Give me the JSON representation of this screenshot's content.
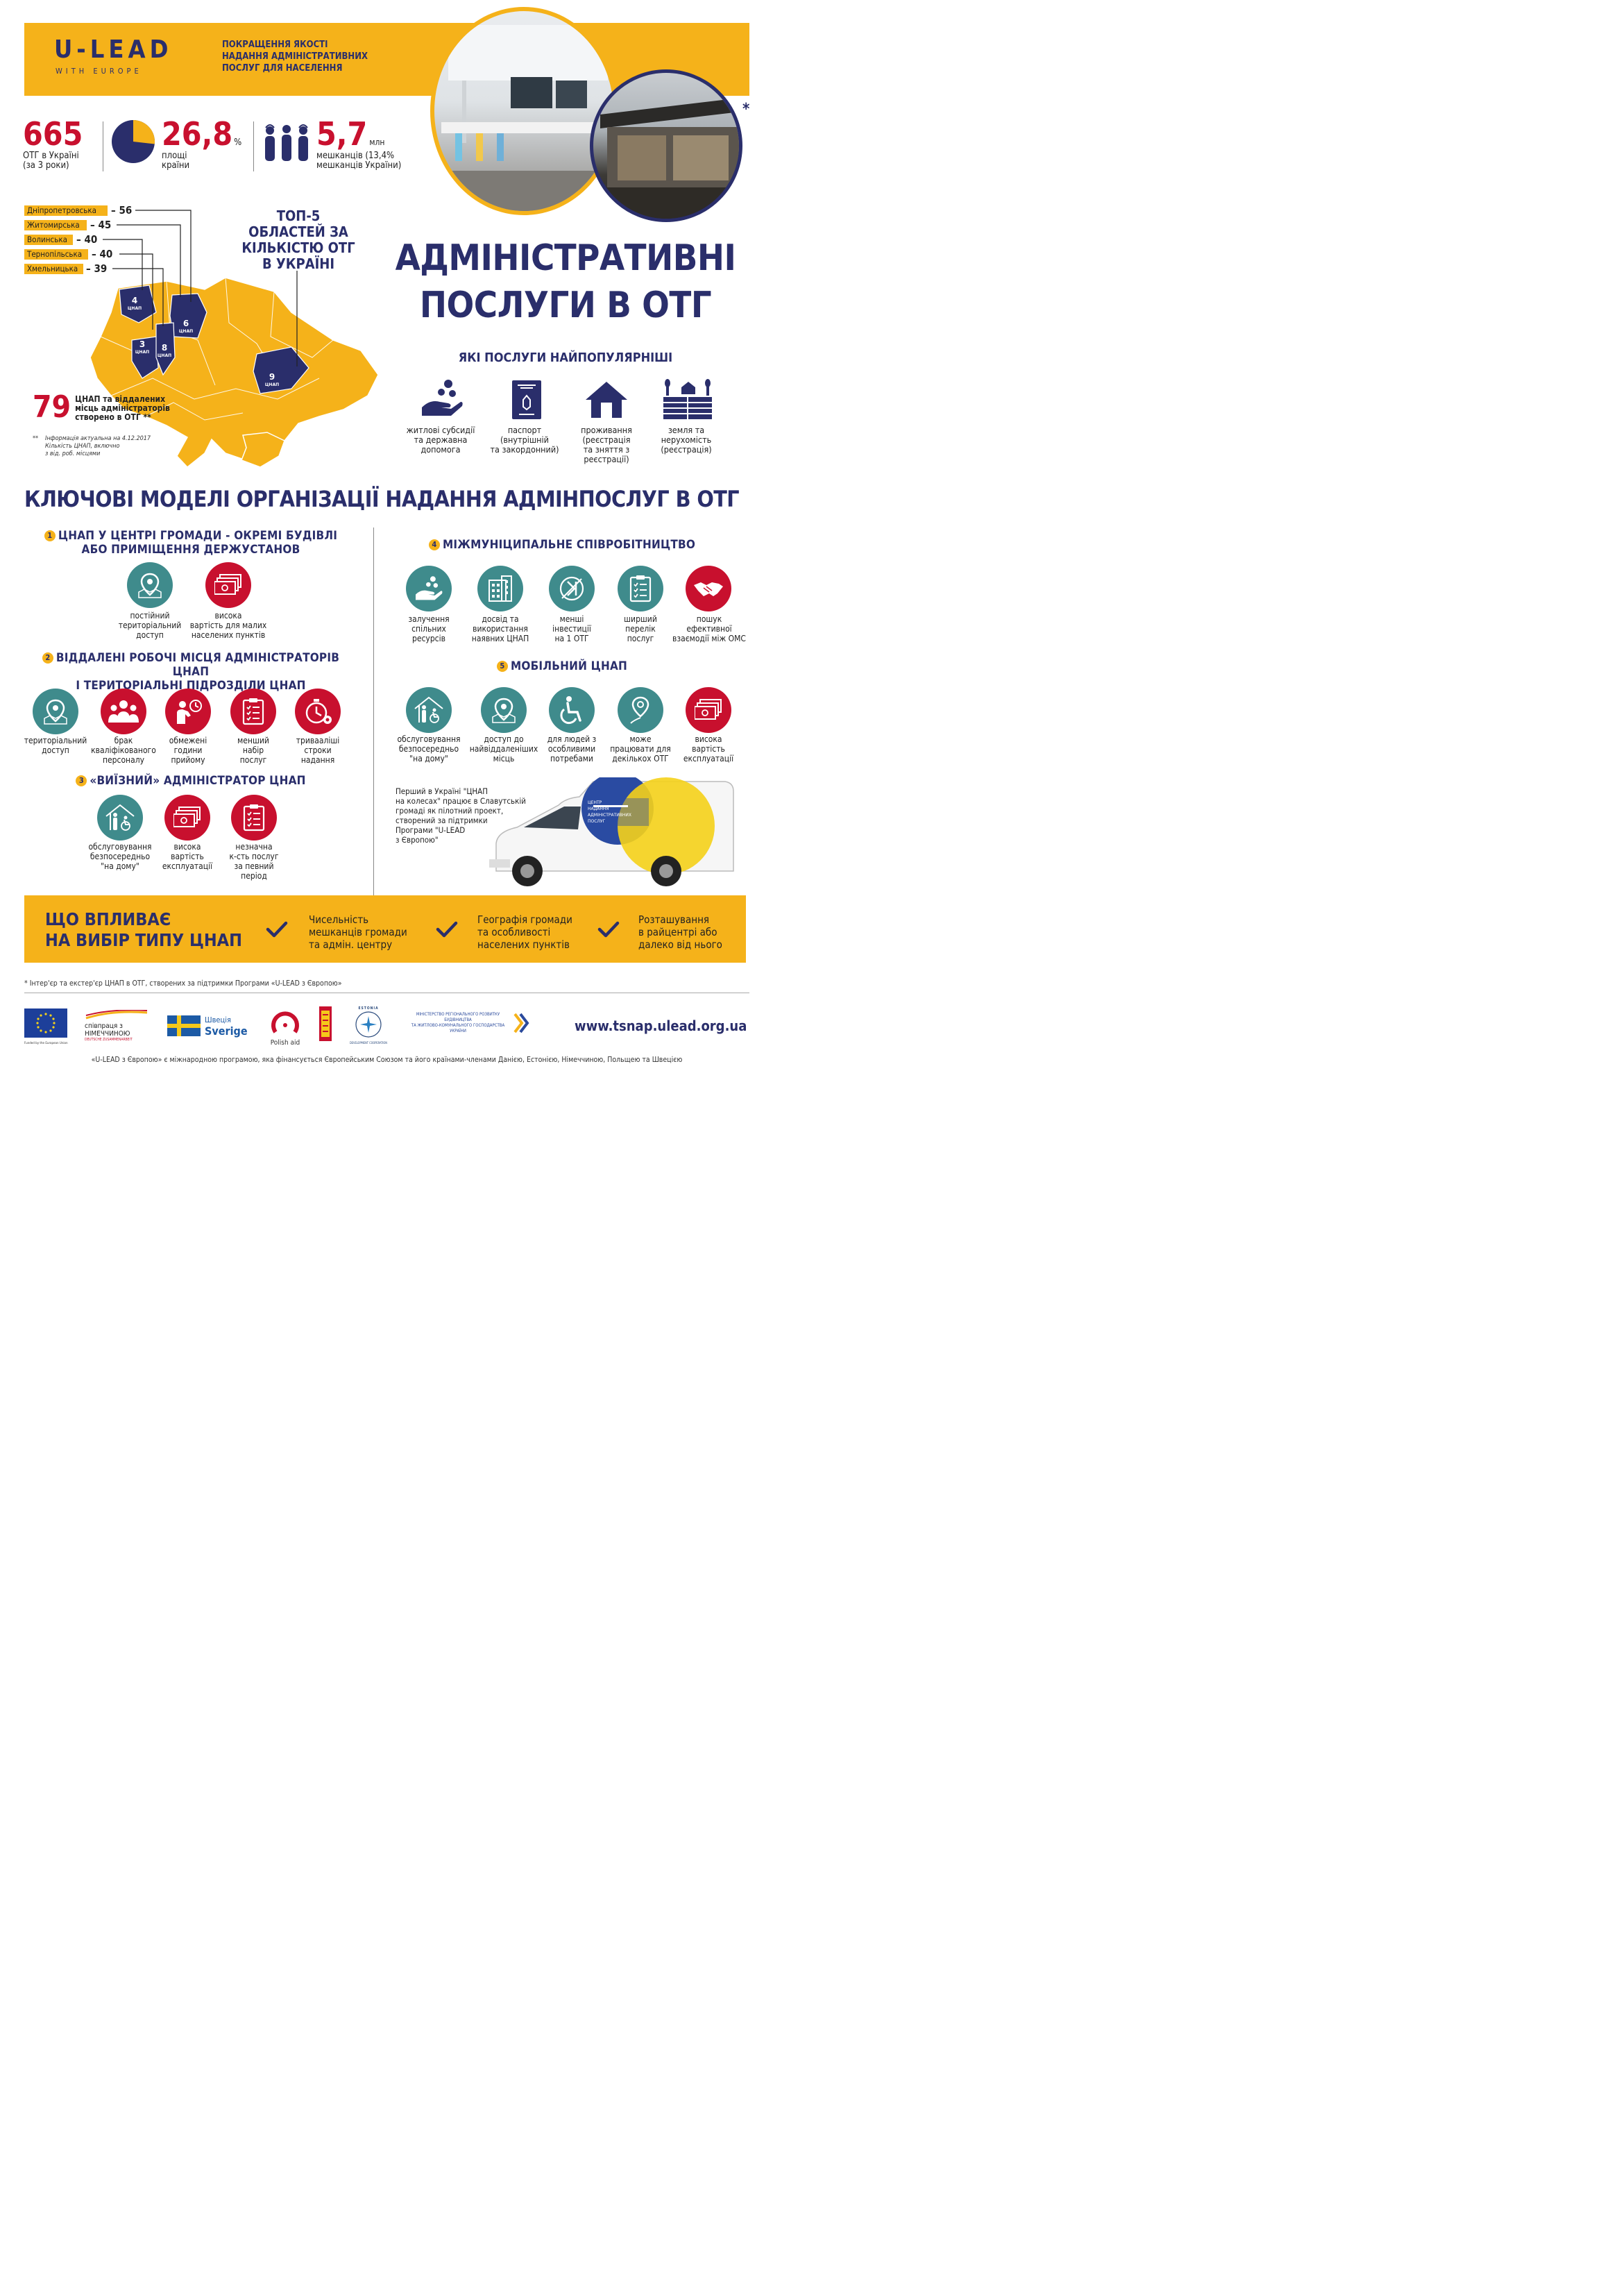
{
  "header": {
    "logo_main": "U-LEAD",
    "logo_sub": "WITH EUROPE",
    "tagline": [
      "ПОКРАЩЕННЯ ЯКОСТІ",
      "НАДАННЯ АДМІНІСТРАТИВНИХ",
      "ПОСЛУГ ДЛЯ НАСЕЛЕННЯ"
    ],
    "asterisk": "*"
  },
  "stats": [
    {
      "value": "665",
      "unit": "",
      "label": [
        "ОТГ в Україні",
        "(за 3 роки)"
      ]
    },
    {
      "value": "26,8",
      "unit": "%",
      "label": [
        "площі",
        "країни"
      ],
      "pie_fraction": 0.268
    },
    {
      "value": "5,7",
      "unit": "млн",
      "label": [
        "мешканців (13,4%",
        "мешканців України)"
      ]
    }
  ],
  "top5": {
    "title": [
      "ТОП-5",
      "ОБЛАСТЕЙ ЗА",
      "КІЛЬКІСТЮ ОТГ",
      "В УКРАЇНІ"
    ],
    "regions": [
      {
        "name": "Дніпропетровська",
        "value": "– 56"
      },
      {
        "name": "Житомирська",
        "value": "– 45"
      },
      {
        "name": "Волинська",
        "value": "– 40"
      },
      {
        "name": "Тернопільська",
        "value": "– 40"
      },
      {
        "name": "Хмельницька",
        "value": "– 39"
      }
    ],
    "map_labels": [
      {
        "n": "4",
        "t": "ЦНАП"
      },
      {
        "n": "6",
        "t": "ЦНАП"
      },
      {
        "n": "3",
        "t": "ЦНАП"
      },
      {
        "n": "8",
        "t": "ЦНАП"
      },
      {
        "n": "9",
        "t": "ЦНАП"
      }
    ],
    "created_number": "79",
    "created_text": [
      "ЦНАП та віддалених",
      "місць адміністраторів",
      "створено в ОТГ **"
    ],
    "footnote_mark": "**",
    "footnote": [
      "Інформація актуальна на 4.12.2017",
      "Кількість ЦНАП, включно",
      "з від. роб. місцями"
    ]
  },
  "main_title": [
    "АДМІНІСТРАТИВНІ",
    "ПОСЛУГИ В ОТГ"
  ],
  "popular": {
    "title": "ЯКІ ПОСЛУГИ НАЙПОПУЛЯРНІШІ",
    "items": [
      {
        "icon": "hand-coins-icon",
        "label": [
          "житлові субсидії",
          "та державна",
          "допомога"
        ]
      },
      {
        "icon": "passport-icon",
        "label": [
          "паспорт",
          "(внутрішній",
          "та закордонний)"
        ]
      },
      {
        "icon": "house-icon",
        "label": [
          "проживання",
          "(реєстрація",
          "та зняття з",
          "реєстрації)"
        ]
      },
      {
        "icon": "land-icon",
        "label": [
          "земля та",
          "нерухомість",
          "(реєстрація)"
        ]
      }
    ]
  },
  "models": {
    "title": "КЛЮЧОВІ МОДЕЛІ ОРГАНІЗАЦІЇ НАДАННЯ АДМІНПОСЛУГ В ОТГ",
    "m1": {
      "num": "1",
      "title": [
        "ЦНАП У ЦЕНТРІ ГРОМАДИ - ОКРЕМІ БУДІВЛІ",
        "АБО ПРИМІЩЕННЯ ДЕРЖУСТАНОВ"
      ],
      "items": [
        {
          "icon": "map-pin-icon",
          "color": "#3f8b8c",
          "label": [
            "постійний",
            "територіальний",
            "доступ"
          ]
        },
        {
          "icon": "money-icon",
          "color": "#c8102e",
          "label": [
            "висока",
            "вартість для малих",
            "населених пунктів"
          ]
        }
      ]
    },
    "m2": {
      "num": "2",
      "title": [
        "ВІДДАЛЕНІ РОБОЧІ МІСЦЯ АДМІНІСТРАТОРІВ ЦНАП",
        "І ТЕРИТОРІАЛЬНІ ПІДРОЗДІЛИ ЦНАП"
      ],
      "items": [
        {
          "icon": "map-pin-icon",
          "color": "#3f8b8c",
          "label": [
            "територіальний",
            "доступ"
          ]
        },
        {
          "icon": "people-icon",
          "color": "#c8102e",
          "label": [
            "брак",
            "кваліфікованого",
            "персоналу"
          ]
        },
        {
          "icon": "clock-person-icon",
          "color": "#c8102e",
          "label": [
            "обмежені",
            "години",
            "прийому"
          ]
        },
        {
          "icon": "checklist-icon",
          "color": "#c8102e",
          "label": [
            "менший",
            "набір",
            "послуг"
          ]
        },
        {
          "icon": "stopwatch-icon",
          "color": "#c8102e",
          "label": [
            "тривааліші",
            "строки",
            "надання"
          ]
        }
      ]
    },
    "m3": {
      "num": "3",
      "title": "«ВИЇЗНИЙ» АДМІНІСТРАТОР ЦНАП",
      "items": [
        {
          "icon": "home-visit-icon",
          "color": "#3f8b8c",
          "label": [
            "обслуговування",
            "безпосередньо",
            "\"на дому\""
          ]
        },
        {
          "icon": "money-icon",
          "color": "#c8102e",
          "label": [
            "висока",
            "вартість",
            "експлуатації"
          ]
        },
        {
          "icon": "checklist-icon",
          "color": "#c8102e",
          "label": [
            "незначна",
            "к-сть послуг",
            "за певний",
            "період"
          ]
        }
      ]
    },
    "m4": {
      "num": "4",
      "title": "МІЖМУНІЦИПАЛЬНЕ СПІВРОБІТНИЦТВО",
      "items": [
        {
          "icon": "hand-coins-icon",
          "color": "#3f8b8c",
          "label": [
            "залучення",
            "спільних",
            "ресурсів"
          ]
        },
        {
          "icon": "building-icon",
          "color": "#3f8b8c",
          "label": [
            "досвід та",
            "використання",
            "наявних ЦНАП"
          ]
        },
        {
          "icon": "reduced-cost-icon",
          "color": "#3f8b8c",
          "label": [
            "менші",
            "інвестиції",
            "на 1 ОТГ"
          ]
        },
        {
          "icon": "checklist-icon",
          "color": "#3f8b8c",
          "label": [
            "ширший",
            "перелік",
            "послуг"
          ]
        },
        {
          "icon": "handshake-icon",
          "color": "#c8102e",
          "label": [
            "пошук",
            "ефективної",
            "взаємодії між ОМС"
          ]
        }
      ]
    },
    "m5": {
      "num": "5",
      "title": "МОБІЛЬНИЙ ЦНАП",
      "items": [
        {
          "icon": "home-visit-icon",
          "color": "#3f8b8c",
          "label": [
            "обслуговування",
            "безпосередньо",
            "\"на дому\""
          ]
        },
        {
          "icon": "map-pin-icon",
          "color": "#3f8b8c",
          "label": [
            "доступ до",
            "найвіддаленіших",
            "місць"
          ]
        },
        {
          "icon": "wheelchair-icon",
          "color": "#3f8b8c",
          "label": [
            "для людей з",
            "особливими",
            "потребами"
          ]
        },
        {
          "icon": "route-pin-icon",
          "color": "#3f8b8c",
          "label": [
            "може",
            "працювати для",
            "декількох ОТГ"
          ]
        },
        {
          "icon": "money-icon",
          "color": "#c8102e",
          "label": [
            "висока",
            "вартість",
            "експлуатації"
          ]
        }
      ]
    },
    "van_note": [
      "Перший в Україні \"ЦНАП",
      "на колесах\" працює в Славутській",
      "громаді як пілотний проект,",
      "створений за підтримки",
      "Програми \"U-LEAD",
      "з Європою\""
    ],
    "van_sign": [
      "ЦЕНТР",
      "НАДАННЯ",
      "АДМІНІСТРАТИВНИХ",
      "ПОСЛУГ"
    ]
  },
  "factors": {
    "title": [
      "ЩО ВПЛИВАЄ",
      "НА ВИБІР ТИПУ ЦНАП"
    ],
    "items": [
      [
        "Чисельність",
        "мешканців громади",
        "та адмін. центру"
      ],
      [
        "Географія громади",
        "та особливості",
        "населених пунктів"
      ],
      [
        "Розташування",
        "в райцентрі або",
        "далеко від нього"
      ]
    ]
  },
  "footnote": "* Інтер'єр та екстер'єр ЦНАП в ОТГ, створених за підтримки Програми «U-LEAD з Європою»",
  "partners": {
    "eu": "Funded by the European Union",
    "de": [
      "співпраця з",
      "НІМЕЧЧИНОЮ",
      "DEUTSCHE ZUSAMMENARBEIT"
    ],
    "se": [
      "Швеція",
      "Sverige"
    ],
    "pl": "Polish aid",
    "ee": [
      "ESTONIA",
      "DEVELOPMENT COOPERATION"
    ],
    "ministry": [
      "МІНІСТЕРСТВО РЕГІОНАЛЬНОГО РОЗВИТКУ",
      "БУДІВНИЦТВА",
      "ТА ЖИТЛОВО-КОМУНАЛЬНОГО ГОСПОДАРСТВА",
      "УКРАЇНИ"
    ],
    "website": "www.tsnap.ulead.org.ua"
  },
  "bottom_note": "«U-LEAD з Європою» є міжнародною програмою, яка фінансується Європейським Союзом та його країнами-членами Данією, Естонією, Німеччиною, Польщею та Швецією",
  "colors": {
    "yellow": "#f5b21a",
    "navy": "#2a2e6b",
    "red": "#c8102e",
    "teal": "#3f8b8c"
  }
}
